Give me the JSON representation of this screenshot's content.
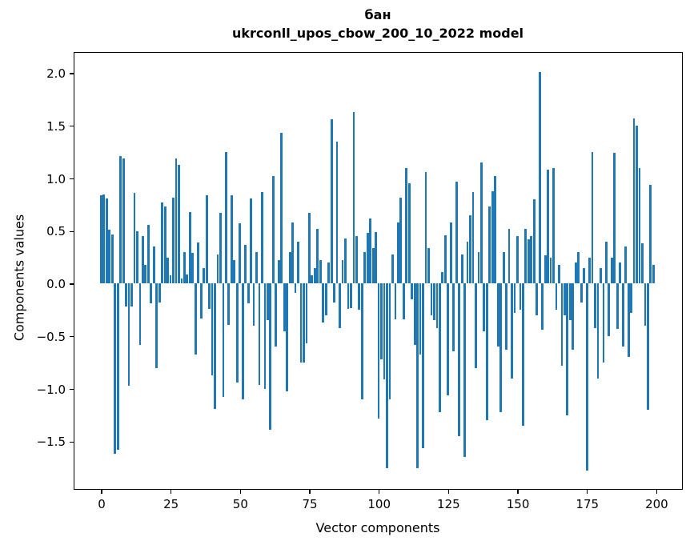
{
  "figure": {
    "title_word": "бан",
    "title_model": "ukrconll_upos_cbow_200_10_2022 model",
    "xlabel": "Vector components",
    "ylabel": "Components values",
    "background_color": "#ffffff",
    "bar_color": "#1f77b4",
    "spine_color": "#000000"
  },
  "chart_data": {
    "type": "bar",
    "title": "бан",
    "subtitle": "ukrconll_upos_cbow_200_10_2022 model",
    "xlabel": "Vector components",
    "ylabel": "Components values",
    "x_start": 0,
    "x_ticks": [
      0,
      25,
      50,
      75,
      100,
      125,
      150,
      175,
      200
    ],
    "y_ticks": [
      2.0,
      1.5,
      1.0,
      0.5,
      0.0,
      -0.5,
      -1.0,
      -1.5
    ],
    "xlim": [
      -10,
      209.4
    ],
    "ylim": [
      -1.95,
      2.2
    ],
    "grid": false,
    "legend_position": null,
    "bar_color": "#1f77b4",
    "values": [
      0.84,
      0.85,
      0.81,
      0.51,
      0.47,
      -1.62,
      -1.58,
      1.21,
      1.19,
      -0.22,
      -0.97,
      -0.22,
      0.86,
      0.5,
      -0.58,
      0.45,
      0.18,
      0.56,
      -0.19,
      0.35,
      -0.8,
      -0.18,
      0.77,
      0.73,
      0.25,
      0.08,
      0.82,
      1.19,
      1.13,
      0.05,
      0.3,
      0.09,
      0.68,
      0.29,
      -0.67,
      0.39,
      -0.33,
      0.15,
      0.84,
      -0.24,
      -0.87,
      -1.19,
      0.28,
      0.67,
      -1.08,
      1.25,
      -0.39,
      0.84,
      0.22,
      -0.94,
      0.57,
      -1.1,
      0.37,
      -0.19,
      0.81,
      -0.4,
      0.3,
      -0.96,
      0.87,
      -1.0,
      -0.35,
      -1.39,
      1.02,
      -0.6,
      0.22,
      1.43,
      -0.45,
      -1.02,
      0.3,
      0.58,
      -0.09,
      0.4,
      -0.75,
      -0.75,
      -0.57,
      0.67,
      0.08,
      0.15,
      0.52,
      0.22,
      -0.37,
      -0.3,
      0.2,
      1.56,
      -0.18,
      1.35,
      -0.42,
      0.22,
      0.43,
      -0.24,
      -0.23,
      1.63,
      0.45,
      -0.25,
      -1.1,
      0.3,
      0.48,
      0.62,
      0.34,
      0.49,
      -1.28,
      -0.72,
      -0.91,
      -1.75,
      -1.1,
      0.28,
      -0.34,
      0.58,
      0.82,
      -0.34,
      1.1,
      0.95,
      -0.15,
      -0.58,
      -1.75,
      -0.67,
      -1.56,
      1.06,
      0.34,
      -0.3,
      -0.35,
      -0.42,
      -1.22,
      0.11,
      0.46,
      -1.06,
      0.58,
      -0.64,
      0.97,
      -1.45,
      0.28,
      -1.65,
      0.4,
      0.65,
      0.87,
      -0.8,
      0.3,
      1.15,
      -0.45,
      -1.3,
      0.73,
      0.88,
      1.02,
      -0.6,
      -1.22,
      0.3,
      -0.63,
      0.52,
      -0.9,
      -0.28,
      0.45,
      -0.25,
      -1.35,
      0.52,
      0.42,
      0.45,
      0.8,
      -0.3,
      2.01,
      -0.44,
      0.27,
      1.08,
      0.25,
      1.1,
      -0.25,
      0.18,
      -0.78,
      -0.3,
      -1.25,
      -0.35,
      -0.63,
      0.2,
      0.3,
      -0.18,
      0.15,
      -1.78,
      0.25,
      1.25,
      -0.42,
      -0.9,
      0.15,
      -0.75,
      0.4,
      -0.5,
      0.25,
      1.24,
      -0.43,
      0.2,
      -0.6,
      0.35,
      -0.7,
      -0.28,
      1.57,
      1.5,
      1.1,
      0.38,
      -0.4,
      -1.2,
      0.94,
      0.18
    ]
  }
}
